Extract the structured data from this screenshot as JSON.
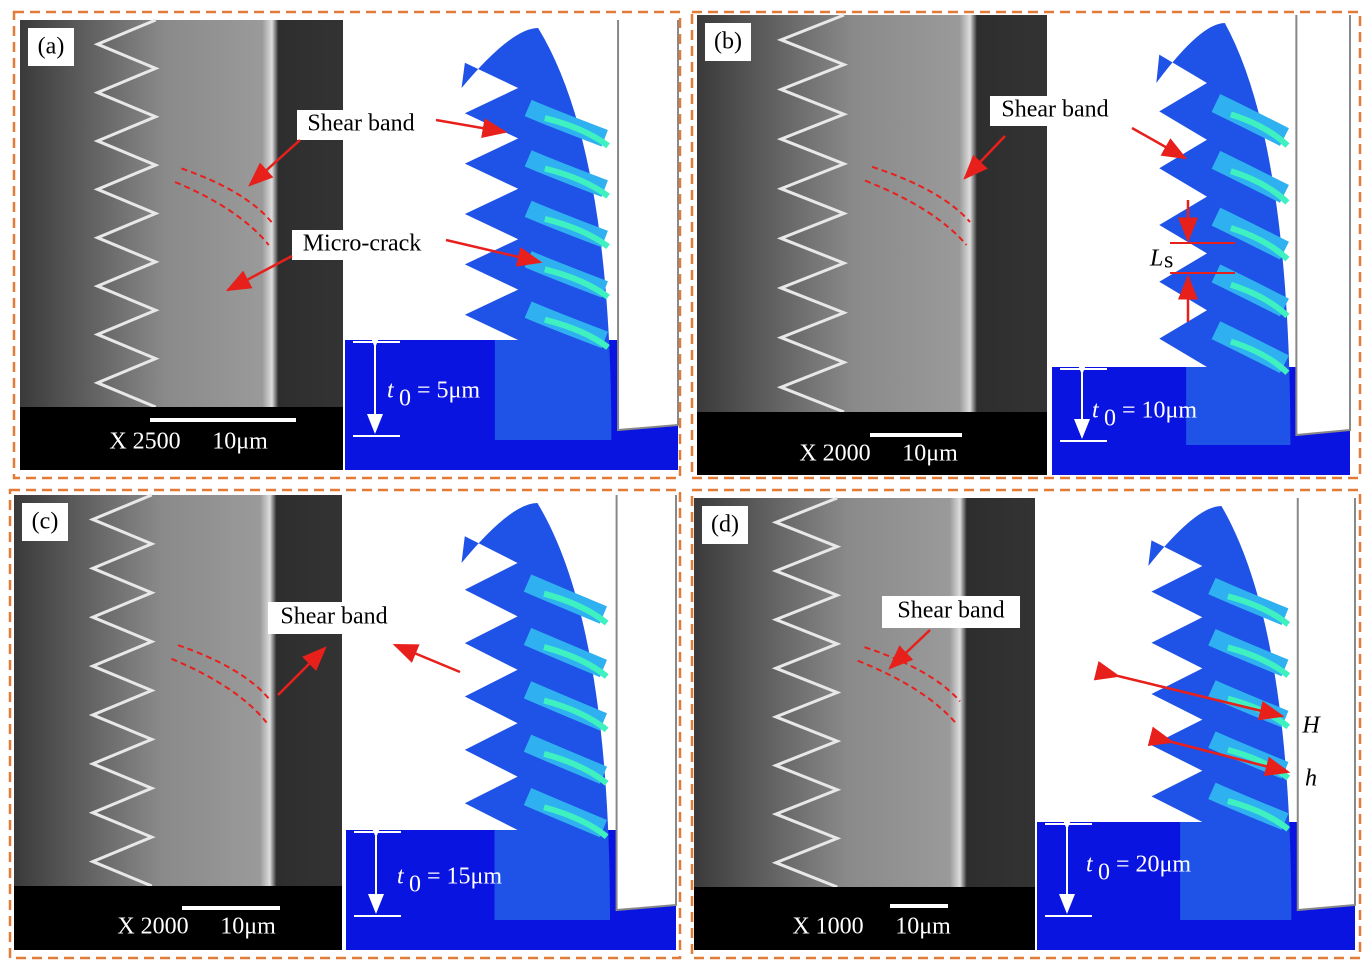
{
  "panels": [
    {
      "label": "(a)",
      "magnification": "X 2500",
      "scale": "10μm",
      "symbol": "t",
      "subscript": "0",
      "thickness": "= 5μm",
      "annotations": [
        "Shear band",
        "Micro-crack"
      ]
    },
    {
      "label": "(b)",
      "magnification": "X 2000",
      "scale": "10μm",
      "symbol": "t",
      "subscript": "0",
      "thickness": "= 10μm",
      "annotations": [
        "Shear band",
        "L",
        "s"
      ]
    },
    {
      "label": "(c)",
      "magnification": "X 2000",
      "scale": "10μm",
      "symbol": "t",
      "subscript": "0",
      "thickness": "= 15μm",
      "annotations": [
        "Shear band"
      ]
    },
    {
      "label": "(d)",
      "magnification": "X 1000",
      "scale": "10μm",
      "symbol": "t",
      "subscript": "0",
      "thickness": "= 20μm",
      "annotations": [
        "Shear band",
        "H",
        "h"
      ]
    }
  ]
}
